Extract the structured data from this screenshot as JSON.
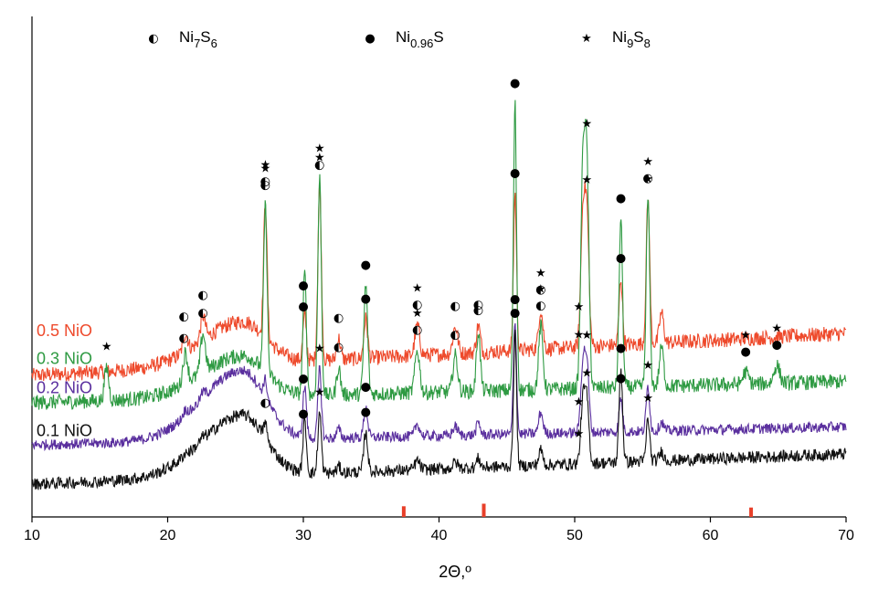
{
  "chart_data": {
    "type": "line",
    "title": "",
    "xlabel": "2Θ,º",
    "ylabel": "",
    "xlim": [
      10,
      70
    ],
    "x_ticks": [
      10,
      20,
      30,
      40,
      50,
      60,
      70
    ],
    "x_tick_labels": [
      "10",
      "20",
      "30",
      "40",
      "50",
      "60",
      "70"
    ],
    "grid": false,
    "y_ticks_shown": false,
    "legend": {
      "placement": "top",
      "entries": [
        {
          "marker": "half-filled-circle",
          "glyph": "◐",
          "base": "Ni",
          "sub1": "7",
          "mid": "S",
          "sub2": "6"
        },
        {
          "marker": "filled-circle",
          "glyph": "●",
          "base": "Ni",
          "sub1": "0.96",
          "mid": "S",
          "sub2": ""
        },
        {
          "marker": "star",
          "glyph": "★",
          "base": "Ni",
          "sub1": "9",
          "mid": "S",
          "sub2": "8"
        }
      ]
    },
    "reference_ticks": {
      "color": "#e8402a",
      "positions": [
        37.4,
        43.3,
        63.0
      ],
      "heights": [
        0.55,
        0.75,
        0.45
      ]
    },
    "peak_profile": [
      {
        "x": 15.5,
        "w": 0.22
      },
      {
        "x": 21.3,
        "w": 0.25
      },
      {
        "x": 22.6,
        "w": 0.25
      },
      {
        "x": 27.2,
        "w": 0.18
      },
      {
        "x": 30.1,
        "w": 0.18
      },
      {
        "x": 31.2,
        "w": 0.18
      },
      {
        "x": 32.6,
        "w": 0.2
      },
      {
        "x": 34.6,
        "w": 0.2
      },
      {
        "x": 38.4,
        "w": 0.25
      },
      {
        "x": 41.2,
        "w": 0.25
      },
      {
        "x": 42.9,
        "w": 0.2
      },
      {
        "x": 45.6,
        "w": 0.16
      },
      {
        "x": 47.5,
        "w": 0.22
      },
      {
        "x": 50.6,
        "w": 0.22
      },
      {
        "x": 50.9,
        "w": 0.22
      },
      {
        "x": 53.4,
        "w": 0.18
      },
      {
        "x": 55.4,
        "w": 0.18
      },
      {
        "x": 56.4,
        "w": 0.22
      },
      {
        "x": 62.6,
        "w": 0.3
      },
      {
        "x": 64.9,
        "w": 0.3
      }
    ],
    "series": [
      {
        "name": "0.5 NiO",
        "color": "#ee4a2c",
        "baseline_left": 0.36,
        "baseline_right": 0.5,
        "hump_height": 0.62,
        "noise": 0.05,
        "peaks": [
          0,
          0.06,
          0.08,
          0.45,
          0.15,
          0.58,
          0.07,
          0.13,
          0.1,
          0.09,
          0.09,
          0.52,
          0.13,
          0.42,
          0.42,
          0.22,
          0.48,
          0.1,
          0.0,
          0.0
        ]
      },
      {
        "name": "0.3 NiO",
        "color": "#2e9a42",
        "baseline_left": 0.27,
        "baseline_right": 0.34,
        "hump_height": 0.52,
        "noise": 0.05,
        "peaks": [
          0.11,
          0.1,
          0.13,
          0.55,
          0.4,
          0.72,
          0.09,
          0.36,
          0.14,
          0.12,
          0.2,
          0.95,
          0.21,
          0.7,
          0.7,
          0.56,
          0.62,
          0.13,
          0.04,
          0.06
        ]
      },
      {
        "name": "0.2 NiO",
        "color": "#5a2f9e",
        "baseline_left": 0.13,
        "baseline_right": 0.19,
        "hump_height": 0.55,
        "noise": 0.035,
        "peaks": [
          0,
          0.02,
          0.02,
          0.06,
          0.17,
          0.23,
          0.03,
          0.1,
          0.04,
          0.03,
          0.04,
          0.38,
          0.07,
          0.22,
          0.22,
          0.11,
          0.15,
          0.03,
          0.0,
          0.0
        ]
      },
      {
        "name": "0.1 NiO",
        "color": "#111111",
        "baseline_left": 0.0,
        "baseline_right": 0.1,
        "hump_height": 0.37,
        "noise": 0.04,
        "peaks": [
          0,
          0.01,
          0.01,
          0.05,
          0.17,
          0.2,
          0.02,
          0.13,
          0.03,
          0.02,
          0.03,
          0.44,
          0.05,
          0.2,
          0.2,
          0.31,
          0.14,
          0.03,
          0.0,
          0.0
        ]
      }
    ],
    "peak_markers": {
      "0.5 NiO": [
        {
          "x": 21.2,
          "stack": [
            "◐"
          ]
        },
        {
          "x": 22.6,
          "stack": [
            "◐"
          ]
        },
        {
          "x": 27.2,
          "stack": [
            "★",
            "◐"
          ]
        },
        {
          "x": 30.0,
          "stack": [
            "●"
          ]
        },
        {
          "x": 31.2,
          "stack": [
            "★",
            "◐"
          ]
        },
        {
          "x": 32.6,
          "stack": [
            "◐"
          ]
        },
        {
          "x": 34.6,
          "stack": [
            "●"
          ]
        },
        {
          "x": 38.4,
          "stack": [
            "★",
            "◐"
          ]
        },
        {
          "x": 41.2,
          "stack": [
            "◐"
          ]
        },
        {
          "x": 42.9,
          "stack": [
            "◐"
          ]
        },
        {
          "x": 45.6,
          "stack": [
            "●"
          ]
        },
        {
          "x": 47.5,
          "stack": [
            "★",
            "◐"
          ]
        },
        {
          "x": 50.3,
          "stack": [
            "★"
          ]
        },
        {
          "x": 50.9,
          "stack": [
            "★"
          ]
        },
        {
          "x": 53.4,
          "stack": [
            "●"
          ]
        },
        {
          "x": 55.4,
          "stack": [
            "★",
            "◐"
          ]
        }
      ],
      "0.3 NiO": [
        {
          "x": 15.5,
          "stack": [
            "★"
          ]
        },
        {
          "x": 21.2,
          "stack": [
            "◐"
          ]
        },
        {
          "x": 22.6,
          "stack": [
            "◐"
          ]
        },
        {
          "x": 27.2,
          "stack": [
            "★",
            "◐"
          ]
        },
        {
          "x": 30.0,
          "stack": [
            "●"
          ]
        },
        {
          "x": 31.2,
          "stack": [
            "★"
          ]
        },
        {
          "x": 32.6,
          "stack": [
            "◐"
          ]
        },
        {
          "x": 34.6,
          "stack": [
            "●"
          ]
        },
        {
          "x": 38.4,
          "stack": [
            "★",
            "◐"
          ]
        },
        {
          "x": 41.2,
          "stack": [
            "◐"
          ]
        },
        {
          "x": 42.9,
          "stack": [
            "◐"
          ]
        },
        {
          "x": 45.6,
          "stack": [
            "●"
          ]
        },
        {
          "x": 47.5,
          "stack": [
            "★",
            "◐"
          ]
        },
        {
          "x": 50.3,
          "stack": [
            "★"
          ]
        },
        {
          "x": 50.9,
          "stack": [
            "★"
          ]
        },
        {
          "x": 53.4,
          "stack": [
            "●"
          ]
        },
        {
          "x": 55.4,
          "stack": [
            "★"
          ]
        },
        {
          "x": 62.6,
          "stack": [
            "★",
            "●"
          ]
        },
        {
          "x": 64.9,
          "stack": [
            "★",
            "●"
          ]
        }
      ],
      "0.2 NiO": [
        {
          "x": 30.0,
          "stack": [
            "●"
          ]
        },
        {
          "x": 31.2,
          "stack": [
            "★"
          ]
        },
        {
          "x": 34.6,
          "stack": [
            "●"
          ]
        },
        {
          "x": 45.6,
          "stack": [
            "●"
          ]
        },
        {
          "x": 50.3,
          "stack": [
            "★"
          ]
        },
        {
          "x": 50.9,
          "stack": [
            "★"
          ]
        },
        {
          "x": 53.4,
          "stack": [
            "●"
          ]
        },
        {
          "x": 55.4,
          "stack": [
            "★"
          ]
        }
      ],
      "0.1 NiO": [
        {
          "x": 27.2,
          "stack": [
            "◐"
          ]
        },
        {
          "x": 30.0,
          "stack": [
            "●"
          ]
        },
        {
          "x": 31.2,
          "stack": [
            "★"
          ]
        },
        {
          "x": 34.6,
          "stack": [
            "●"
          ]
        },
        {
          "x": 45.6,
          "stack": [
            "●"
          ]
        },
        {
          "x": 50.3,
          "stack": [
            "★"
          ]
        },
        {
          "x": 50.9,
          "stack": [
            "★"
          ]
        },
        {
          "x": 53.4,
          "stack": [
            "●"
          ]
        },
        {
          "x": 55.4,
          "stack": [
            "★"
          ]
        }
      ]
    }
  }
}
